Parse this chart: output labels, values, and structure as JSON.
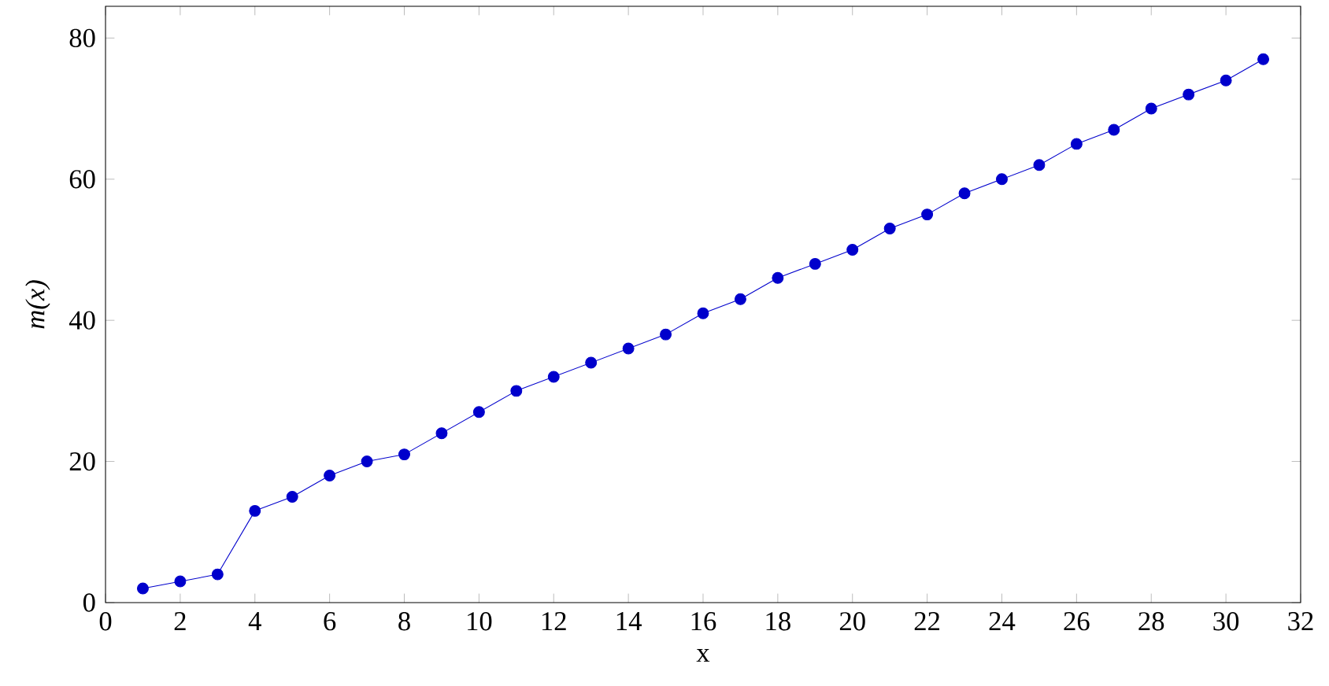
{
  "chart_data": {
    "type": "line",
    "xlabel": "x",
    "ylabel": "m(x)",
    "x": [
      1,
      2,
      3,
      4,
      5,
      6,
      7,
      8,
      9,
      10,
      11,
      12,
      13,
      14,
      15,
      16,
      17,
      18,
      19,
      20,
      21,
      22,
      23,
      24,
      25,
      26,
      27,
      28,
      29,
      30,
      31
    ],
    "series": [
      {
        "color": "#0000cc",
        "values": [
          2,
          3,
          4,
          13,
          15,
          18,
          20,
          21,
          24,
          27,
          30,
          32,
          34,
          36,
          38,
          41,
          43,
          46,
          48,
          50,
          53,
          55,
          58,
          60,
          62,
          65,
          67,
          70,
          72,
          74,
          77
        ]
      }
    ],
    "xlim": [
      0,
      32
    ],
    "ylim": [
      0,
      84.5
    ],
    "xticks": [
      0,
      2,
      4,
      6,
      8,
      10,
      12,
      14,
      16,
      18,
      20,
      22,
      24,
      26,
      28,
      30,
      32
    ],
    "yticks": [
      0,
      20,
      40,
      60,
      80
    ],
    "marker": "circle",
    "line_style": "solid"
  }
}
